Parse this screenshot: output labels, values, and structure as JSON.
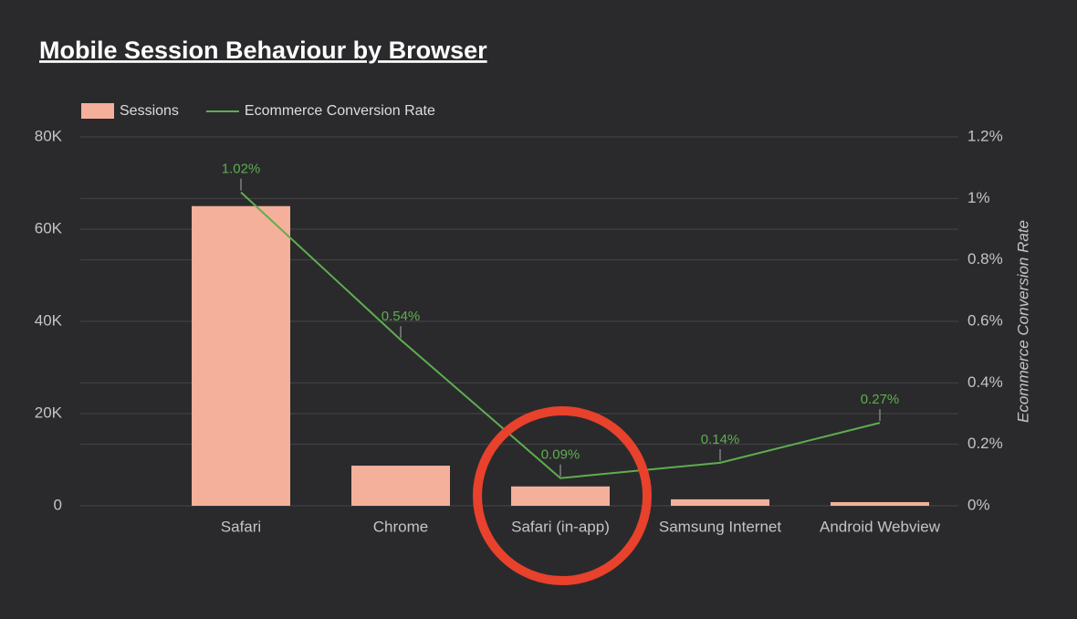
{
  "chart_data": {
    "type": "bar",
    "title": "Mobile Session Behaviour by Browser",
    "categories": [
      "Safari",
      "Chrome",
      "Safari (in-app)",
      "Samsung Internet",
      "Android Webview"
    ],
    "series": [
      {
        "name": "Sessions",
        "type": "bar",
        "color": "#f4b09a",
        "values": [
          65000,
          8700,
          4200,
          1400,
          800
        ]
      },
      {
        "name": "Ecommerce Conversion Rate",
        "type": "line",
        "axis": "y2",
        "color": "#5fae4f",
        "values": [
          1.02,
          0.54,
          0.09,
          0.14,
          0.27
        ],
        "value_labels": [
          "1.02%",
          "0.54%",
          "0.09%",
          "0.14%",
          "0.27%"
        ]
      }
    ],
    "ylim": [
      0,
      80000
    ],
    "yticks": [
      0,
      {
        "value": 20000,
        "label": "20K"
      },
      {
        "value": 40000,
        "label": "40K"
      },
      {
        "value": 60000,
        "label": "60K"
      },
      {
        "value": 80000,
        "label": "80K"
      }
    ],
    "y2lim": [
      0,
      1.2
    ],
    "y2ticks": [
      {
        "value": 0,
        "label": "0%"
      },
      {
        "value": 0.2,
        "label": "0.2%"
      },
      {
        "value": 0.4,
        "label": "0.4%"
      },
      {
        "value": 0.6,
        "label": "0.6%"
      },
      {
        "value": 0.8,
        "label": "0.8%"
      },
      {
        "value": 1,
        "label": "1%"
      },
      {
        "value": 1.2,
        "label": "1.2%"
      }
    ],
    "y2label": "Ecommerce Conversion Rate",
    "grid": true,
    "legend": "top-left"
  }
}
